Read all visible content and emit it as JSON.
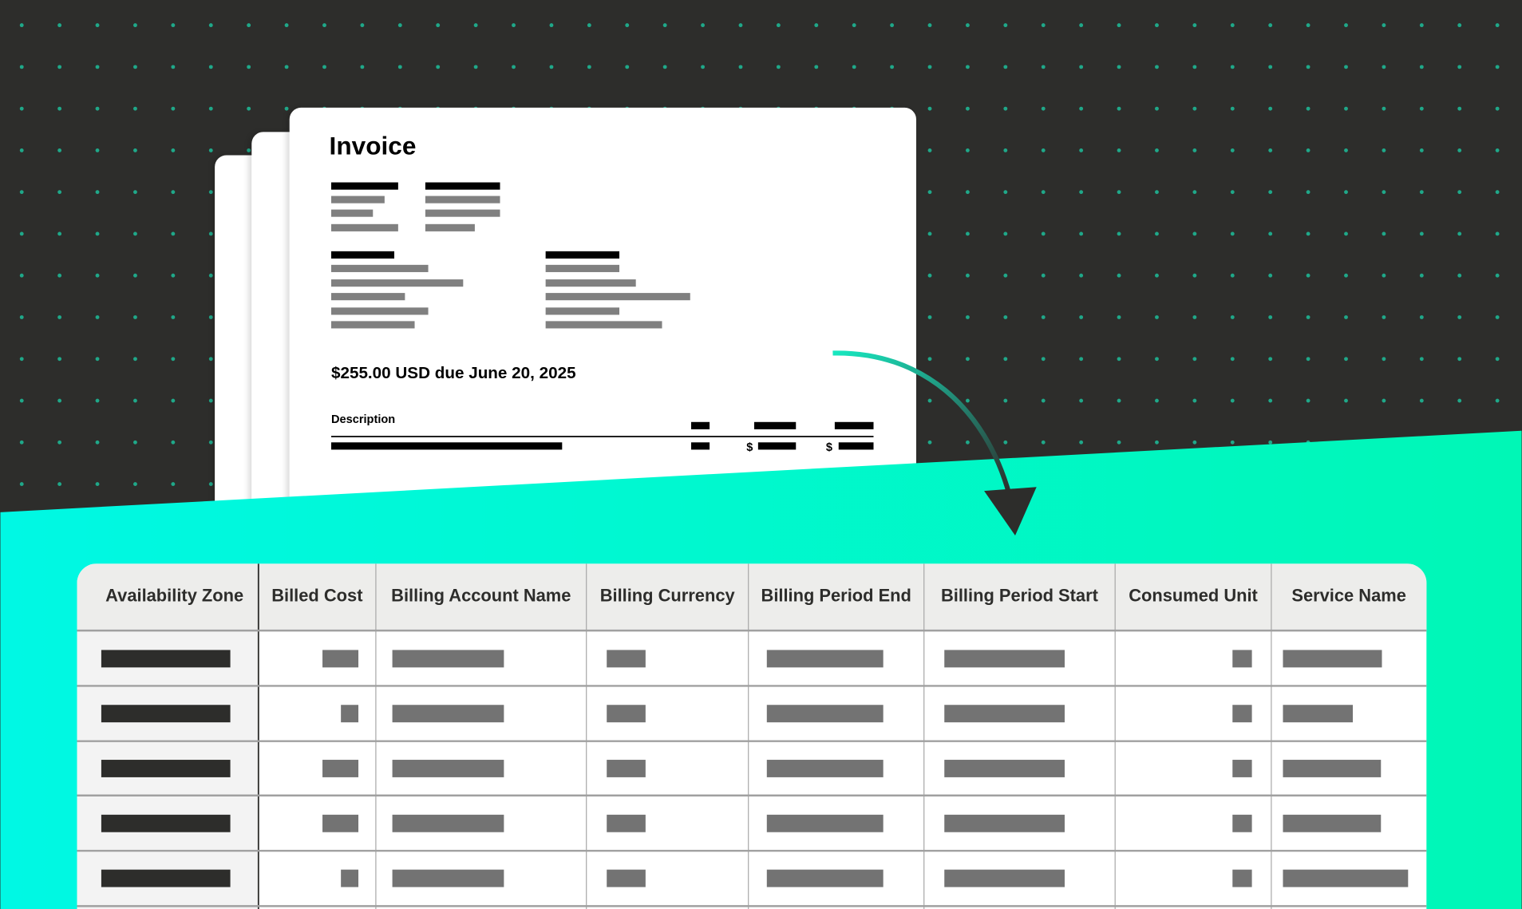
{
  "invoice": {
    "title": "Invoice",
    "amount_due": "$255.00 USD due June 20, 2025",
    "description_header": "Description",
    "currency_symbol": "$"
  },
  "table": {
    "columns": [
      "Availability Zone",
      "Billed Cost",
      "Billing Account Name",
      "Billing Currency",
      "Billing Period End",
      "Billing Period Start",
      "Consumed Unit",
      "Service Name"
    ]
  },
  "colors": {
    "background": "#2d2d2b",
    "dot": "#1fa889",
    "accent_left": "#00f8e4",
    "accent_right": "#00f7b6",
    "header_bg": "#ededeb",
    "redaction_dark": "#2d2d2b",
    "redaction_gray": "#737373"
  }
}
